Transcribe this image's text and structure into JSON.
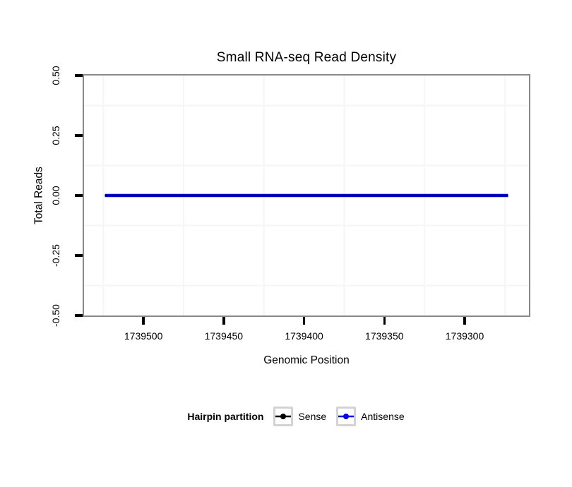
{
  "chart_data": {
    "type": "line",
    "title": "Small RNA-seq Read Density",
    "xlabel": "Genomic Position",
    "ylabel": "Total Reads",
    "x_axis_reversed": true,
    "xlim": [
      1739537,
      1739260
    ],
    "ylim": [
      -0.5,
      0.5
    ],
    "x_ticks": [
      1739500,
      1739450,
      1739400,
      1739350,
      1739300
    ],
    "x_tick_labels": [
      "1739500",
      "1739450",
      "1739400",
      "1739350",
      "1739300"
    ],
    "y_ticks": [
      0.5,
      0.25,
      0,
      -0.25,
      -0.5
    ],
    "y_tick_labels": [
      "0.50",
      "0.25",
      "0.00",
      "-0.25",
      "-0.50"
    ],
    "grid": {
      "visible": "minor-only",
      "color": "#f6f6f6",
      "x_minor": [
        1739525,
        1739475,
        1739425,
        1739375,
        1739325,
        1739275
      ],
      "y_minor": [
        0.375,
        0.125,
        -0.125,
        -0.375
      ]
    },
    "series": [
      {
        "name": "Sense",
        "color": "#000000",
        "stroke_width": 2.2,
        "x": [
          1739524,
          1739273
        ],
        "y": [
          0,
          0
        ]
      },
      {
        "name": "Antisense",
        "color": "#0000ee",
        "stroke_width": 4.5,
        "x": [
          1739524,
          1739273
        ],
        "y": [
          0,
          0
        ]
      }
    ],
    "legend": {
      "title": "Hairpin partition",
      "position": "bottom",
      "entries": [
        "Sense",
        "Antisense"
      ]
    }
  },
  "colors": {
    "panel_border": "#898989",
    "tick_color": "#000000",
    "grid_minor": "#f6f6f6",
    "legend_key_border": "#d3d3d3",
    "sense": "#000000",
    "antisense": "#0000ee",
    "background": "#ffffff"
  }
}
